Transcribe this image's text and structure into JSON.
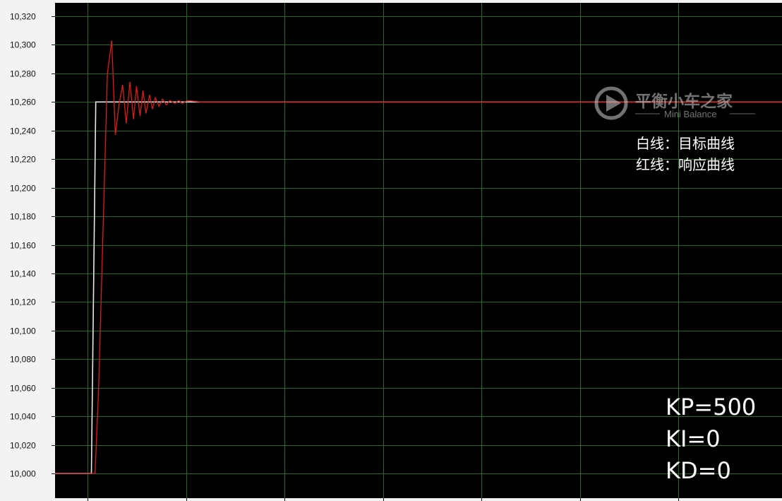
{
  "legend": {
    "white_line": "白线：目标曲线",
    "red_line": "红线：响应曲线"
  },
  "params": {
    "kp": "KP=500",
    "ki": "KI=0",
    "kd": "KD=0"
  },
  "watermark": {
    "title": "平衡小车之家",
    "subtitle": "Mini Balance",
    "icon": "play-logo-icon"
  },
  "colors": {
    "background": "#000000",
    "grid": "#1f6b1f",
    "target_line": "#e8e8e8",
    "response_line": "#dd1b1b",
    "frame": "#f3f3f3"
  },
  "chart_data": {
    "type": "line",
    "title": "",
    "xlabel": "",
    "ylabel": "",
    "ylim": [
      10.0,
      10.32
    ],
    "xlim": [
      0,
      100
    ],
    "grid": true,
    "legend_placement": "top-right",
    "yticks": [
      "10,000",
      "10,020",
      "10,040",
      "10,060",
      "10,080",
      "10,100",
      "10,120",
      "10,140",
      "10,160",
      "10,180",
      "10,200",
      "10,220",
      "10,240",
      "10,260",
      "10,280",
      "10,300",
      "10,320"
    ],
    "ytick_values": [
      10.0,
      10.02,
      10.04,
      10.06,
      10.08,
      10.1,
      10.12,
      10.14,
      10.16,
      10.18,
      10.2,
      10.22,
      10.24,
      10.26,
      10.28,
      10.3,
      10.32
    ],
    "series": [
      {
        "name": "白线：目标曲线",
        "color": "#e8e8e8",
        "x": [
          0,
          5.0,
          5.6,
          100
        ],
        "y": [
          10.0,
          10.0,
          10.26,
          10.26
        ]
      },
      {
        "name": "红线：响应曲线",
        "color": "#dd1b1b",
        "x": [
          0,
          5.5,
          6.0,
          6.6,
          7.2,
          7.8,
          8.3,
          8.8,
          9.3,
          9.8,
          10.3,
          10.8,
          11.2,
          11.7,
          12.1,
          12.5,
          13.0,
          13.4,
          13.8,
          14.3,
          14.8,
          15.3,
          15.8,
          16.5,
          17.0,
          17.5,
          18.2,
          20.0,
          100
        ],
        "y": [
          10.0,
          10.0,
          10.06,
          10.17,
          10.28,
          10.303,
          10.237,
          10.258,
          10.272,
          10.245,
          10.274,
          10.248,
          10.271,
          10.25,
          10.268,
          10.252,
          10.265,
          10.255,
          10.263,
          10.257,
          10.262,
          10.258,
          10.261,
          10.259,
          10.261,
          10.259,
          10.261,
          10.26,
          10.26
        ]
      }
    ]
  }
}
